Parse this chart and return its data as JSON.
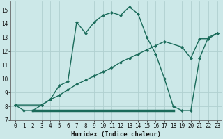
{
  "title": "",
  "xlabel": "Humidex (Indice chaleur)",
  "xlim": [
    -0.5,
    23.5
  ],
  "ylim": [
    7,
    15.6
  ],
  "xticks": [
    0,
    1,
    2,
    3,
    4,
    5,
    6,
    7,
    8,
    9,
    10,
    11,
    12,
    13,
    14,
    15,
    16,
    17,
    18,
    19,
    20,
    21,
    22,
    23
  ],
  "yticks": [
    7,
    8,
    9,
    10,
    11,
    12,
    13,
    14,
    15
  ],
  "bg_color": "#cce8e8",
  "grid_color": "#b0d0d0",
  "line_color": "#1a6b5a",
  "curve1_x": [
    0,
    1,
    2,
    3,
    4,
    5,
    6,
    7,
    8,
    9,
    10,
    11,
    12,
    13,
    14,
    15,
    16,
    17,
    18,
    19,
    20,
    21,
    22,
    23
  ],
  "curve1_y": [
    8.1,
    7.7,
    7.7,
    8.1,
    8.5,
    9.5,
    9.8,
    14.1,
    13.3,
    14.1,
    14.6,
    14.8,
    14.6,
    15.2,
    14.7,
    13.0,
    11.8,
    10.0,
    8.0,
    7.7,
    7.7,
    11.5,
    13.0,
    13.3
  ],
  "curve2_x": [
    0,
    3,
    4,
    5,
    6,
    7,
    8,
    9,
    10,
    11,
    12,
    13,
    14,
    15,
    16,
    17,
    19,
    20,
    21,
    22,
    23
  ],
  "curve2_y": [
    8.1,
    8.1,
    8.5,
    8.8,
    9.2,
    9.6,
    9.9,
    10.2,
    10.5,
    10.8,
    11.2,
    11.5,
    11.8,
    12.1,
    12.4,
    12.7,
    12.3,
    11.5,
    12.9,
    12.9,
    13.3
  ],
  "hline_x1": 2,
  "hline_x2": 18,
  "hline_y": 7.7,
  "hline2_x1": 18,
  "hline2_x2": 19,
  "hline2_y": 7.7,
  "marker": "D",
  "markersize": 2.5,
  "linewidth": 1.0
}
